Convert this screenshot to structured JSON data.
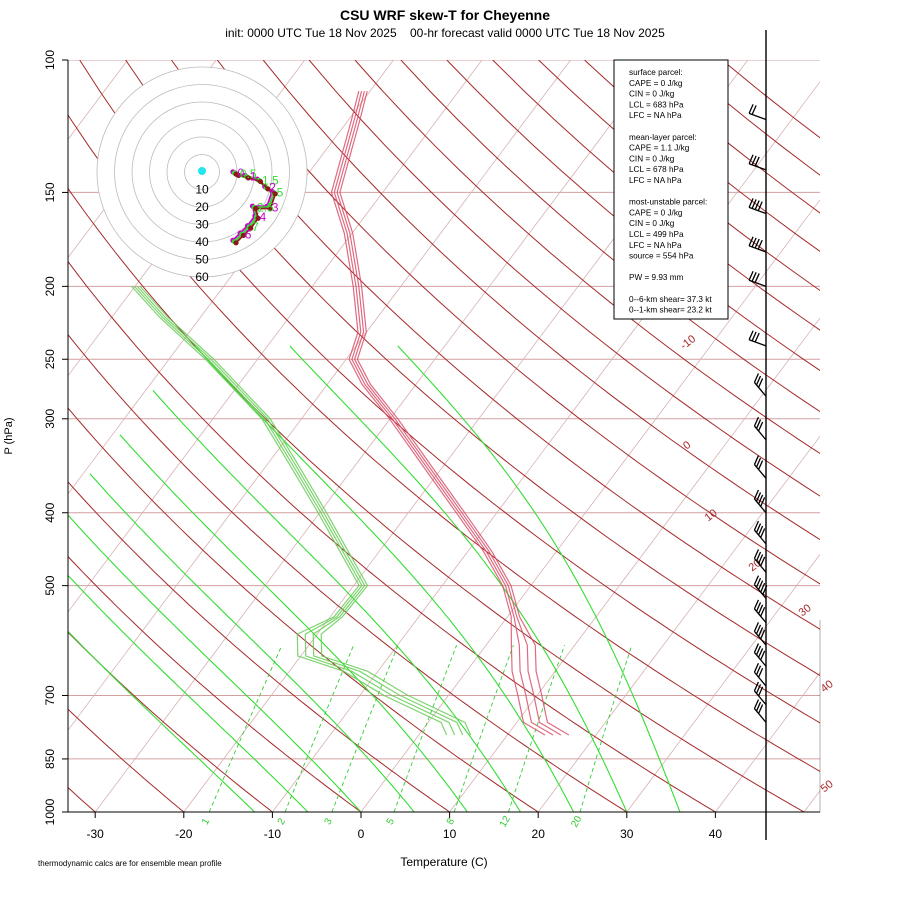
{
  "title": "CSU WRF skew-T for Cheyenne",
  "subtitle": "init: 0000 UTC Tue 18 Nov 2025    00-hr forecast valid 0000 UTC Tue 18 Nov 2025",
  "footnote": "thermodynamic calcs are for ensemble mean profile",
  "stats": [
    "surface parcel:",
    "CAPE = 0 J/kg",
    "CIN = 0 J/kg",
    "LCL = 683 hPa",
    "LFC = NA hPa",
    "",
    "mean-layer parcel:",
    "CAPE = 1.1 J/kg",
    "CIN = 0 J/kg",
    "LCL = 678 hPa",
    "LFC = NA hPa",
    "",
    "most-unstable parcel:",
    "CAPE = 0 J/kg",
    "CIN = 0 J/kg",
    "LCL = 499 hPa",
    "LFC = NA hPa",
    "source = 554 hPa",
    "",
    "PW =  9.93 mm",
    "",
    "0--6-km shear= 37.3 kt",
    "0--1-km shear= 23.2 kt"
  ],
  "colors": {
    "isobar": "#d4a0a0",
    "isotherm": "#d8b0b0",
    "dry_adiabat": "#a52a2a",
    "moist_adiabat": "#33dd33",
    "mixing_ratio": "#33cc33",
    "temperature": "#d9506a",
    "dewpoint": "#66cc55",
    "hodo_ring": "#bbbbbb",
    "hodo_line": "#8b1a1a",
    "hodo_member": "#cc00cc"
  },
  "chart_data": {
    "type": "skew-t",
    "xlabel": "Temperature (C)",
    "ylabel": "P (hPa)",
    "xticks": [
      -30,
      -20,
      -10,
      0,
      10,
      20,
      30,
      40
    ],
    "pressure_ticks": [
      100,
      150,
      200,
      250,
      300,
      400,
      500,
      700,
      850,
      1000
    ],
    "isobars": [
      100,
      150,
      200,
      250,
      300,
      400,
      500,
      700,
      850,
      1000
    ],
    "dry_adiabat_labels": [
      -10,
      0,
      10,
      20,
      30,
      40,
      50
    ],
    "mixing_ratio_labels": [
      1,
      2,
      3,
      5,
      8,
      12,
      20
    ],
    "temperature_profile": [
      {
        "p": 790,
        "t": 15.6
      },
      {
        "p": 760,
        "t": 12.1
      },
      {
        "p": 700,
        "t": 9.2
      },
      {
        "p": 650,
        "t": 6.5
      },
      {
        "p": 600,
        "t": 4.2
      },
      {
        "p": 550,
        "t": 0.9
      },
      {
        "p": 500,
        "t": -2.7
      },
      {
        "p": 450,
        "t": -7.8
      },
      {
        "p": 400,
        "t": -14.1
      },
      {
        "p": 350,
        "t": -21.3
      },
      {
        "p": 300,
        "t": -29.6
      },
      {
        "p": 270,
        "t": -35.6
      },
      {
        "p": 250,
        "t": -39.2
      },
      {
        "p": 230,
        "t": -40.5
      },
      {
        "p": 200,
        "t": -44.9
      },
      {
        "p": 170,
        "t": -50.4
      },
      {
        "p": 150,
        "t": -55.3
      },
      {
        "p": 120,
        "t": -59.2
      },
      {
        "p": 110,
        "t": -60.8
      }
    ],
    "dewpoint_profile": [
      {
        "p": 790,
        "t": 4.5
      },
      {
        "p": 760,
        "t": 2.8
      },
      {
        "p": 700,
        "t": -5.9
      },
      {
        "p": 650,
        "t": -12.5
      },
      {
        "p": 620,
        "t": -19.0
      },
      {
        "p": 580,
        "t": -20.9
      },
      {
        "p": 550,
        "t": -19.1
      },
      {
        "p": 500,
        "t": -18.9
      },
      {
        "p": 450,
        "t": -24.0
      },
      {
        "p": 400,
        "t": -29.7
      },
      {
        "p": 350,
        "t": -36.3
      },
      {
        "p": 300,
        "t": -44.0
      },
      {
        "p": 250,
        "t": -55.4
      },
      {
        "p": 220,
        "t": -64.1
      },
      {
        "p": 200,
        "t": -69.9
      }
    ],
    "hodograph": {
      "rings": [
        10,
        20,
        30,
        40,
        50,
        60
      ],
      "points": [
        {
          "u": 1,
          "v": 0,
          "label": "0"
        },
        {
          "u": 2,
          "v": -0.5,
          "label": "0.5"
        },
        {
          "u": 6,
          "v": -1.5,
          "label": "1"
        },
        {
          "u": 11,
          "v": -3,
          "label": "1.5"
        },
        {
          "u": 14,
          "v": -6,
          "label": "2"
        },
        {
          "u": 17,
          "v": -8,
          "label": "5"
        },
        {
          "u": 15,
          "v": -14,
          "label": "3"
        },
        {
          "u": 9,
          "v": -14,
          "label": "2.5"
        },
        {
          "u": 10,
          "v": -18,
          "label": "4"
        },
        {
          "u": 7,
          "v": -22,
          "label": "7"
        },
        {
          "u": 4,
          "v": -25,
          "label": "6"
        },
        {
          "u": 1,
          "v": -28,
          "label": ""
        }
      ]
    },
    "wind_barbs": [
      {
        "p": 120,
        "speed": 20
      },
      {
        "p": 140,
        "speed": 30
      },
      {
        "p": 160,
        "speed": 35
      },
      {
        "p": 180,
        "speed": 35
      },
      {
        "p": 200,
        "speed": 30
      },
      {
        "p": 240,
        "speed": 25
      },
      {
        "p": 280,
        "speed": 30
      },
      {
        "p": 320,
        "speed": 25
      },
      {
        "p": 360,
        "speed": 30
      },
      {
        "p": 400,
        "speed": 35
      },
      {
        "p": 440,
        "speed": 40
      },
      {
        "p": 480,
        "speed": 40
      },
      {
        "p": 520,
        "speed": 45
      },
      {
        "p": 560,
        "speed": 40
      },
      {
        "p": 600,
        "speed": 40
      },
      {
        "p": 640,
        "speed": 35
      },
      {
        "p": 680,
        "speed": 30
      },
      {
        "p": 720,
        "speed": 30
      },
      {
        "p": 760,
        "speed": 25
      }
    ]
  }
}
